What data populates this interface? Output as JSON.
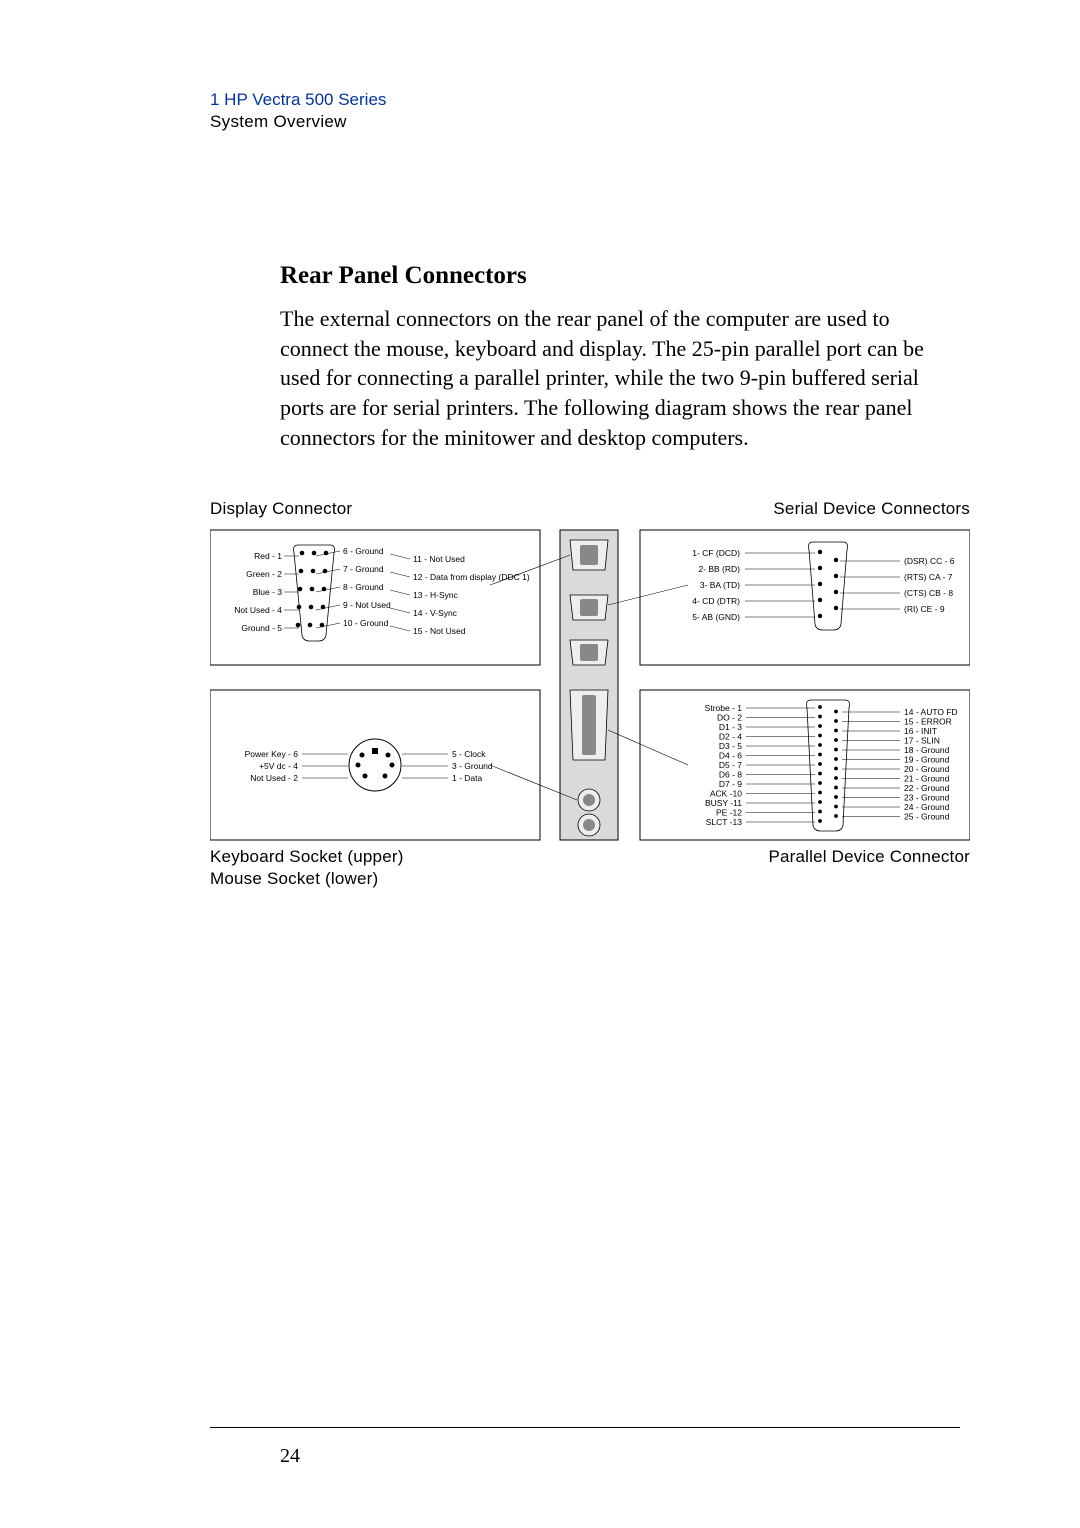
{
  "header": {
    "chapter": "1  HP Vectra 500 Series",
    "section": "System Overview"
  },
  "heading": "Rear Panel Connectors",
  "body": "The external connectors on the rear panel of the computer are used to connect the mouse, keyboard and display. The 25-pin parallel port can be used for connecting a parallel printer, while the two 9-pin buffered serial ports are for serial printers. The following diagram shows the rear panel connectors for the minitower and desktop computers.",
  "labels": {
    "display": "Display Connector",
    "serial": "Serial Device Connectors",
    "keyboard_upper": "Keyboard Socket (upper)",
    "mouse_lower": "Mouse Socket (lower)",
    "parallel": "Parallel Device Connector"
  },
  "display_connector": {
    "left_pins": [
      {
        "n": "Red - 1"
      },
      {
        "n": "Green - 2"
      },
      {
        "n": "Blue - 3"
      },
      {
        "n": "Not Used - 4"
      },
      {
        "n": "Ground - 5"
      }
    ],
    "mid_pins": [
      {
        "n": "6 - Ground"
      },
      {
        "n": "7 - Ground"
      },
      {
        "n": "8 - Ground"
      },
      {
        "n": "9 - Not Used"
      },
      {
        "n": "10 - Ground"
      }
    ],
    "right_pins": [
      {
        "n": "11 - Not Used"
      },
      {
        "n": "12 - Data from display (DDC 1)"
      },
      {
        "n": "13 - H-Sync"
      },
      {
        "n": "14 - V-Sync"
      },
      {
        "n": "15 - Not Used"
      }
    ]
  },
  "keyboard_socket": {
    "left": [
      {
        "n": "Power Key - 6"
      },
      {
        "n": "+5V dc - 4"
      },
      {
        "n": "Not Used - 2"
      }
    ],
    "right": [
      {
        "n": "5 - Clock"
      },
      {
        "n": "3 - Ground"
      },
      {
        "n": "1 - Data"
      }
    ]
  },
  "serial_connector": {
    "left": [
      {
        "n": "1-  CF (DCD)"
      },
      {
        "n": "2-  BB (RD)"
      },
      {
        "n": "3-  BA (TD)"
      },
      {
        "n": "4-  CD (DTR)"
      },
      {
        "n": "5-  AB (GND)"
      }
    ],
    "right": [
      {
        "n": "(DSR) CC  - 6"
      },
      {
        "n": "(RTS) CA  - 7"
      },
      {
        "n": "(CTS) CB  - 8"
      },
      {
        "n": "(RI) CE  -  9"
      }
    ]
  },
  "parallel_connector": {
    "left": [
      "Strobe - 1",
      "DO - 2",
      "D1 - 3",
      "D2 - 4",
      "D3 - 5",
      "D4 - 6",
      "D5 - 7",
      "D6 - 8",
      "D7 - 9",
      "ACK -10",
      "BUSY -11",
      "PE -12",
      "SLCT -13"
    ],
    "right": [
      "14 - AUTO FD",
      "15 - ERROR",
      "16 - INIT",
      "17 - SLIN",
      "18 - Ground",
      "19 - Ground",
      "20 - Ground",
      "21 - Ground",
      "22 - Ground",
      "23 - Ground",
      "24 - Ground",
      "25 - Ground"
    ]
  },
  "page_number": "24",
  "colors": {
    "accent": "#0033a0",
    "box": "#000000",
    "panel_bg": "#dadada"
  }
}
